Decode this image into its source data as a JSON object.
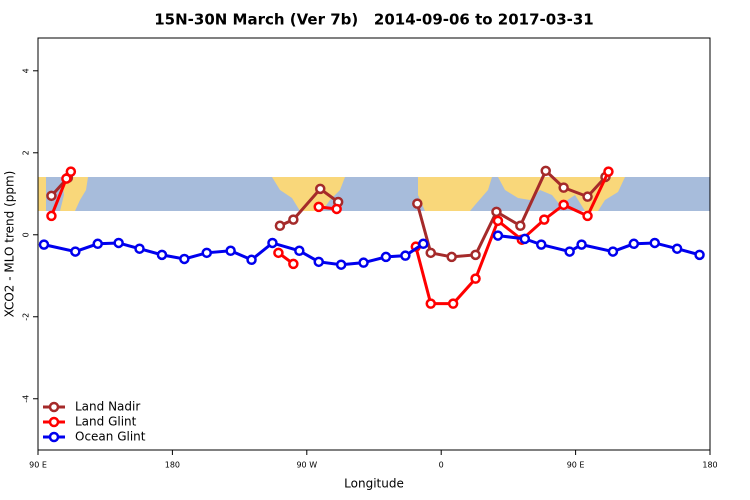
{
  "chart_data": {
    "type": "line",
    "title": "15N-30N March (Ver 7b)   2014-09-06 to 2017-03-31",
    "xlabel": "Longitude",
    "ylabel": "XCO2 - MLO trend (ppm)",
    "xlim": [
      90,
      540
    ],
    "ylim": [
      -5.25,
      4.8
    ],
    "xticks": [
      {
        "value": 90,
        "label": "90 E"
      },
      {
        "value": 180,
        "label": "180"
      },
      {
        "value": 270,
        "label": "90 W"
      },
      {
        "value": 360,
        "label": "0"
      },
      {
        "value": 450,
        "label": "90 E"
      },
      {
        "value": 540,
        "label": "180"
      }
    ],
    "yticks": [
      -4,
      -2,
      0,
      2,
      4
    ],
    "legend": "bottom-left",
    "series": [
      {
        "name": "Land Nadir",
        "color": "#a52a2a",
        "x": [
          99,
          110,
          null,
          252,
          261,
          279,
          291,
          null,
          344,
          353,
          367,
          383,
          397,
          413,
          430,
          442,
          458,
          470
        ],
        "values": [
          0.95,
          1.39,
          null,
          0.22,
          0.37,
          1.12,
          0.8,
          null,
          0.76,
          -0.44,
          -0.54,
          -0.49,
          0.56,
          0.22,
          1.56,
          1.15,
          0.93,
          1.41
        ]
      },
      {
        "name": "Land Glint",
        "color": "#ff0000",
        "x": [
          99,
          109,
          112,
          null,
          251,
          261,
          null,
          278,
          290,
          null,
          343,
          353,
          368,
          383,
          398,
          414,
          429,
          442,
          458,
          472
        ],
        "values": [
          0.46,
          1.37,
          1.54,
          null,
          -0.44,
          -0.71,
          null,
          0.68,
          0.63,
          null,
          -0.29,
          -1.68,
          -1.68,
          -1.07,
          0.34,
          -0.12,
          0.37,
          0.73,
          0.46,
          1.54
        ]
      },
      {
        "name": "Ocean Glint",
        "color": "#0000ee",
        "x": [
          94,
          115,
          130,
          144,
          158,
          173,
          188,
          203,
          219,
          233,
          247,
          265,
          278,
          293,
          308,
          323,
          336,
          348,
          null,
          398,
          416,
          427,
          446,
          454,
          475,
          489,
          503,
          518,
          533
        ],
        "values": [
          -0.24,
          -0.41,
          -0.22,
          -0.2,
          -0.34,
          -0.49,
          -0.59,
          -0.44,
          -0.39,
          -0.61,
          -0.2,
          -0.39,
          -0.66,
          -0.73,
          -0.68,
          -0.54,
          -0.51,
          -0.22,
          null,
          -0.02,
          -0.1,
          -0.24,
          -0.41,
          -0.24,
          -0.41,
          -0.22,
          -0.2,
          -0.34,
          -0.49
        ]
      }
    ]
  }
}
